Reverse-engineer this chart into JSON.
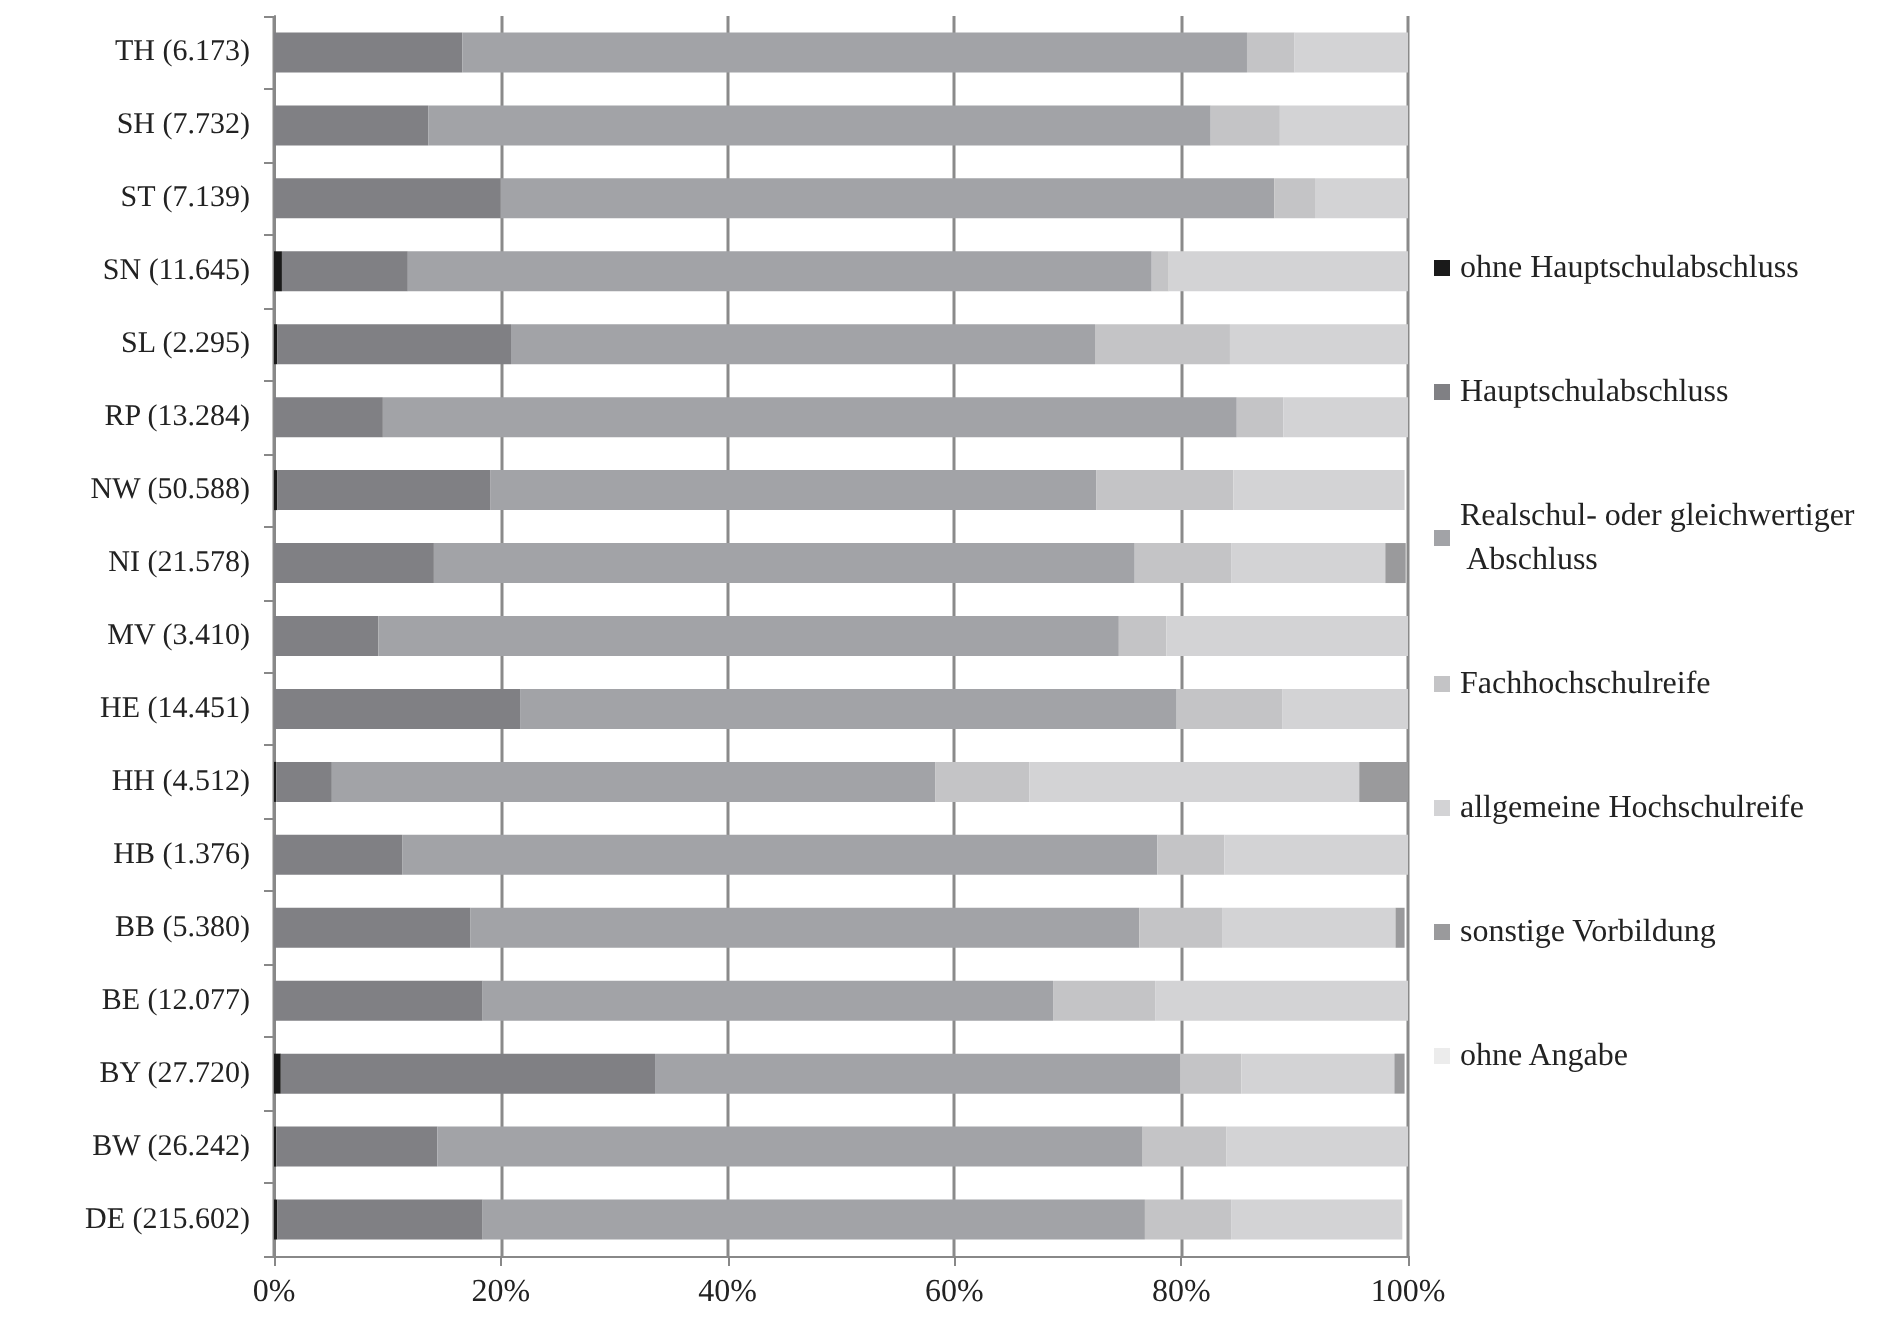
{
  "chart_data": {
    "type": "bar",
    "orientation": "horizontal",
    "stacked": true,
    "grid": "x",
    "legend": "right",
    "categories": [
      "TH (6.173)",
      "SH (7.732)",
      "ST (7.139)",
      "SN (11.645)",
      "SL (2.295)",
      "RP (13.284)",
      "NW (50.588)",
      "NI (21.578)",
      "MV (3.410)",
      "HE (14.451)",
      "HH (4.512)",
      "HB (1.376)",
      "BB (5.380)",
      "BE (12.077)",
      "BY (27.720)",
      "BW (26.242)",
      "DE (215.602)"
    ],
    "xlim": [
      0,
      100
    ],
    "xticks": [
      {
        "value": 0,
        "label": "0%"
      },
      {
        "value": 20,
        "label": "20%"
      },
      {
        "value": 40,
        "label": "40%"
      },
      {
        "value": 60,
        "label": "60%"
      },
      {
        "value": 80,
        "label": "80%"
      },
      {
        "value": 100,
        "label": "100%"
      }
    ],
    "series": [
      {
        "name": "ohne Hauptschulabschluss",
        "color": "#1a1a1a",
        "values": [
          0,
          0,
          0,
          0.7,
          0.3,
          0,
          0.3,
          0,
          0,
          0,
          0.2,
          0,
          0,
          0,
          0.6,
          0.2,
          0.3
        ]
      },
      {
        "name": "Hauptschulabschluss",
        "color": "#808084",
        "values": [
          16.6,
          13.6,
          20.0,
          11.1,
          20.6,
          9.6,
          18.8,
          14.1,
          9.2,
          21.7,
          4.9,
          11.3,
          17.3,
          18.4,
          33.0,
          14.2,
          18.1
        ]
      },
      {
        "name": "Realschul- oder gleichwertiger Abschluss",
        "color": "#a2a3a7",
        "values": [
          69.2,
          69.0,
          68.2,
          65.6,
          51.5,
          75.3,
          53.4,
          61.8,
          65.3,
          57.9,
          53.2,
          66.6,
          59.0,
          50.3,
          46.3,
          62.2,
          58.4
        ]
      },
      {
        "name": "Fachhochschulreife",
        "color": "#c4c4c6",
        "values": [
          4.2,
          6.1,
          3.6,
          1.5,
          11.9,
          4.1,
          12.1,
          8.5,
          4.2,
          9.3,
          8.3,
          5.9,
          7.3,
          9.0,
          5.4,
          7.4,
          7.6
        ]
      },
      {
        "name": "allgemeine Hochschulreife",
        "color": "#d3d3d5",
        "values": [
          10.0,
          11.3,
          8.2,
          21.1,
          15.7,
          11.0,
          15.1,
          13.6,
          21.3,
          11.1,
          29.1,
          16.2,
          15.3,
          22.3,
          13.5,
          16.0,
          15.1
        ]
      },
      {
        "name": "sonstige Vorbildung",
        "color": "#9a9a9c",
        "values": [
          0,
          0,
          0,
          0,
          0,
          0,
          0,
          1.8,
          0,
          0,
          4.3,
          0,
          0.8,
          0,
          0.9,
          0,
          0
        ]
      },
      {
        "name": "ohne Angabe",
        "color": "#ececec",
        "values": [
          0,
          0,
          0,
          0,
          0,
          0,
          0,
          0,
          0,
          0,
          0,
          0,
          0,
          0,
          0,
          0,
          0
        ]
      }
    ]
  }
}
